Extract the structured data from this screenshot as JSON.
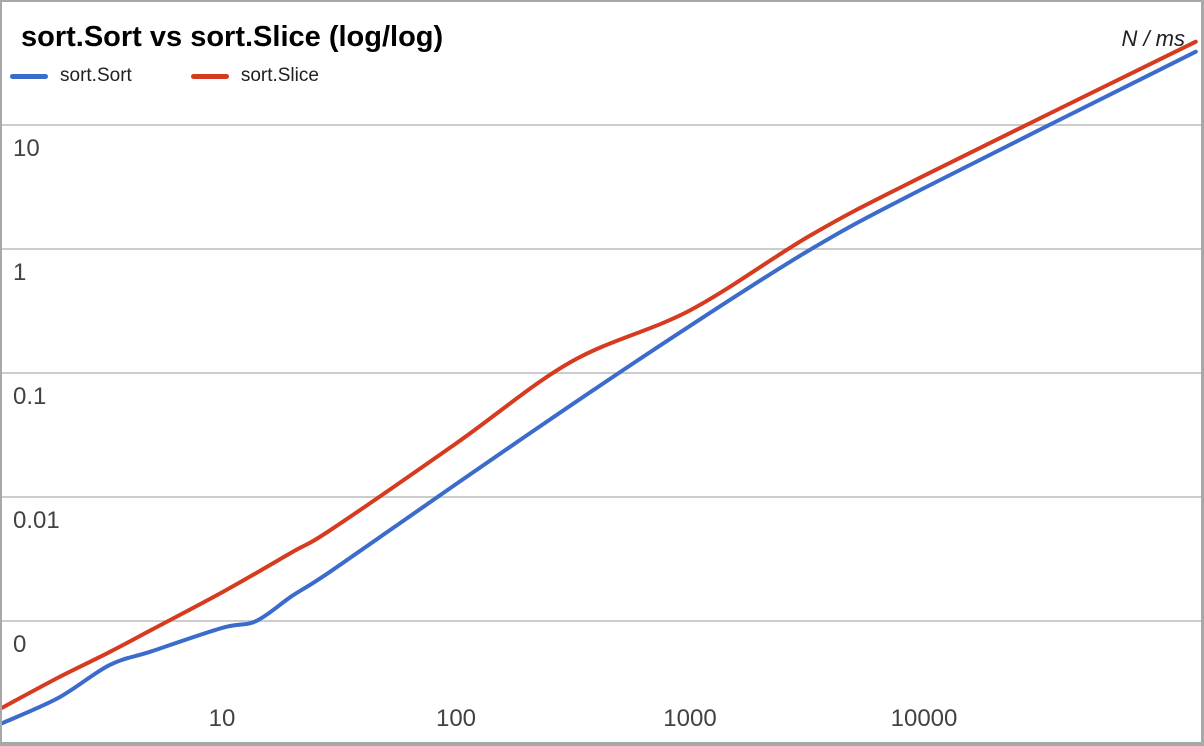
{
  "window": {
    "background": "#ffffff",
    "border_color": "#a8a8a8"
  },
  "chart_data": {
    "type": "line",
    "title": "sort.Sort vs sort.Slice (log/log)",
    "y_axis_unit": "N / ms",
    "x_scale": "log",
    "y_scale": "log",
    "grid": "horizontal gridlines at powers of 10, no vertical gridlines",
    "legend_position": "top-left",
    "x_ticks": [
      {
        "value": 10,
        "label": "10"
      },
      {
        "value": 100,
        "label": "100"
      },
      {
        "value": 1000,
        "label": "1000"
      },
      {
        "value": 10000,
        "label": "10000"
      }
    ],
    "y_ticks": [
      {
        "value": 10,
        "label": "10"
      },
      {
        "value": 1,
        "label": "1"
      },
      {
        "value": 0.1,
        "label": "0.1"
      },
      {
        "value": 0.01,
        "label": "0.01"
      },
      {
        "value": 0.001,
        "label": "0"
      }
    ],
    "x_range": [
      1.15,
      145000
    ],
    "y_range": [
      0.0001,
      100
    ],
    "colors": {
      "grid": "#cccccc",
      "tick_text": "#424242",
      "title_text": "#000000",
      "legend_text": "#212121"
    },
    "series": [
      {
        "name": "sort.Sort",
        "color": "#3b6ccb",
        "points": [
          [
            1.15,
            0.00015
          ],
          [
            2,
            0.00024
          ],
          [
            3.3,
            0.00044
          ],
          [
            5,
            0.00057
          ],
          [
            10,
            0.00088
          ],
          [
            14,
            0.001
          ],
          [
            20,
            0.0016
          ],
          [
            29,
            0.0025
          ],
          [
            100,
            0.0127
          ],
          [
            310,
            0.055
          ],
          [
            1000,
            0.24
          ],
          [
            3300,
            1.0
          ],
          [
            10000,
            3.1
          ],
          [
            145000,
            39
          ]
        ]
      },
      {
        "name": "sort.Slice",
        "color": "#d63b1f",
        "points": [
          [
            1.15,
            0.0002
          ],
          [
            2,
            0.00035
          ],
          [
            3.3,
            0.00056
          ],
          [
            5,
            0.00085
          ],
          [
            10,
            0.0017
          ],
          [
            20,
            0.0036
          ],
          [
            29,
            0.0054
          ],
          [
            100,
            0.027
          ],
          [
            310,
            0.123
          ],
          [
            1000,
            0.32
          ],
          [
            3300,
            1.3
          ],
          [
            10000,
            3.9
          ],
          [
            145000,
            47
          ]
        ]
      }
    ]
  }
}
